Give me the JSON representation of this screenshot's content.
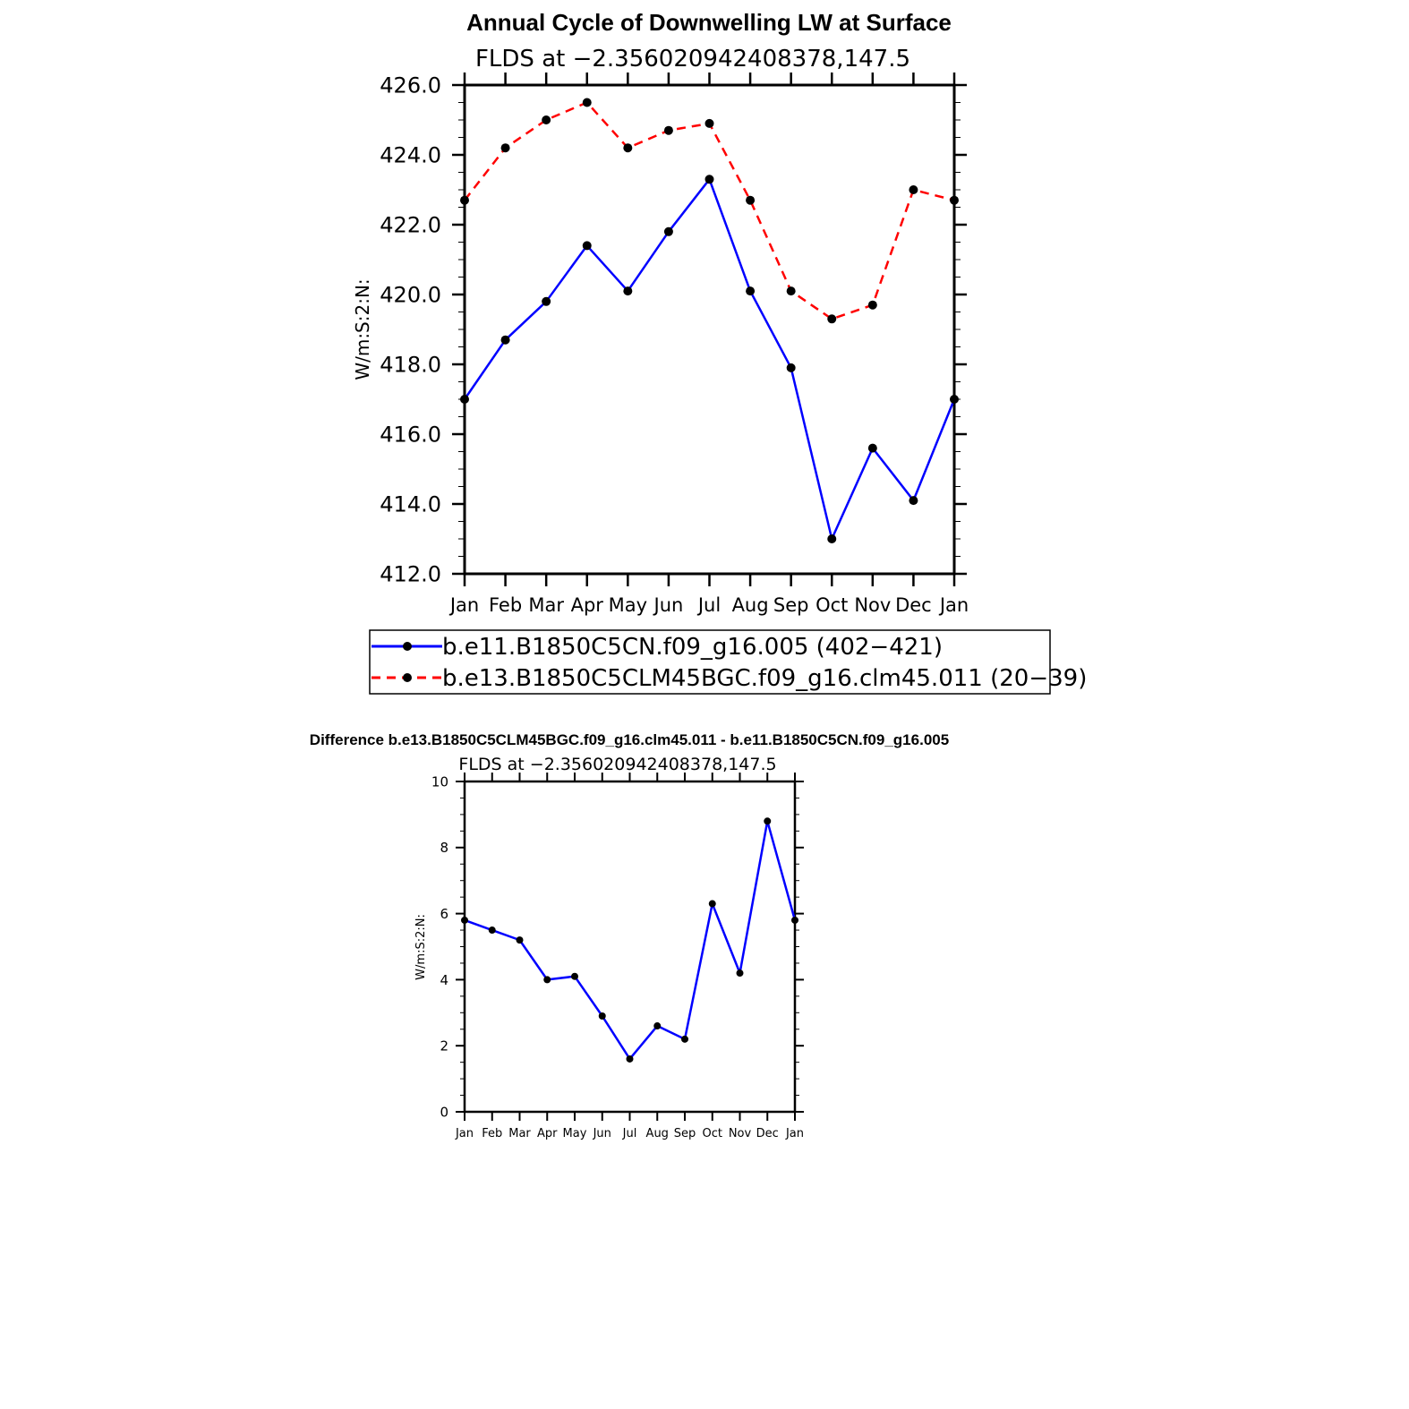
{
  "chart_data": [
    {
      "type": "line",
      "title": "Annual Cycle of Downwelling LW at Surface",
      "subtitle": "FLDS at −2.356020942408378,147.5",
      "xlabel": "",
      "ylabel": "W/m:S:2:N:",
      "categories": [
        "Jan",
        "Feb",
        "Mar",
        "Apr",
        "May",
        "Jun",
        "Jul",
        "Aug",
        "Sep",
        "Oct",
        "Nov",
        "Dec",
        "Jan"
      ],
      "ylim": [
        412,
        426
      ],
      "yticks": [
        "412.0",
        "414.0",
        "416.0",
        "418.0",
        "420.0",
        "422.0",
        "424.0",
        "426.0"
      ],
      "series": [
        {
          "name": "b.e11.B1850C5CN.f09_g16.005 (402−421)",
          "color": "#0000ff",
          "dash": "solid",
          "values": [
            417.0,
            418.7,
            419.8,
            421.4,
            420.1,
            421.8,
            423.3,
            420.1,
            417.9,
            413.0,
            415.6,
            414.1,
            417.0
          ]
        },
        {
          "name": "b.e13.B1850C5CLM45BGC.f09_g16.clm45.011 (20−39)",
          "color": "#ff0000",
          "dash": "dashed",
          "values": [
            422.7,
            424.2,
            425.0,
            425.5,
            424.2,
            424.7,
            424.9,
            422.7,
            420.1,
            419.3,
            419.7,
            423.0,
            422.7
          ]
        }
      ],
      "legend": "bottom",
      "grid": false
    },
    {
      "type": "line",
      "title": "Difference b.e13.B1850C5CLM45BGC.f09_g16.clm45.011 - b.e11.B1850C5CN.f09_g16.005",
      "subtitle": "FLDS at −2.356020942408378,147.5",
      "xlabel": "",
      "ylabel": "W/m:S:2:N:",
      "categories": [
        "Jan",
        "Feb",
        "Mar",
        "Apr",
        "May",
        "Jun",
        "Jul",
        "Aug",
        "Sep",
        "Oct",
        "Nov",
        "Dec",
        "Jan"
      ],
      "ylim": [
        0,
        10
      ],
      "yticks": [
        "0",
        "2",
        "4",
        "6",
        "8",
        "10"
      ],
      "series": [
        {
          "color": "#0000ff",
          "dash": "solid",
          "values": [
            5.8,
            5.5,
            5.2,
            4.0,
            4.1,
            2.9,
            1.6,
            2.6,
            2.2,
            6.3,
            4.2,
            8.8,
            5.8
          ]
        }
      ],
      "grid": false
    }
  ]
}
